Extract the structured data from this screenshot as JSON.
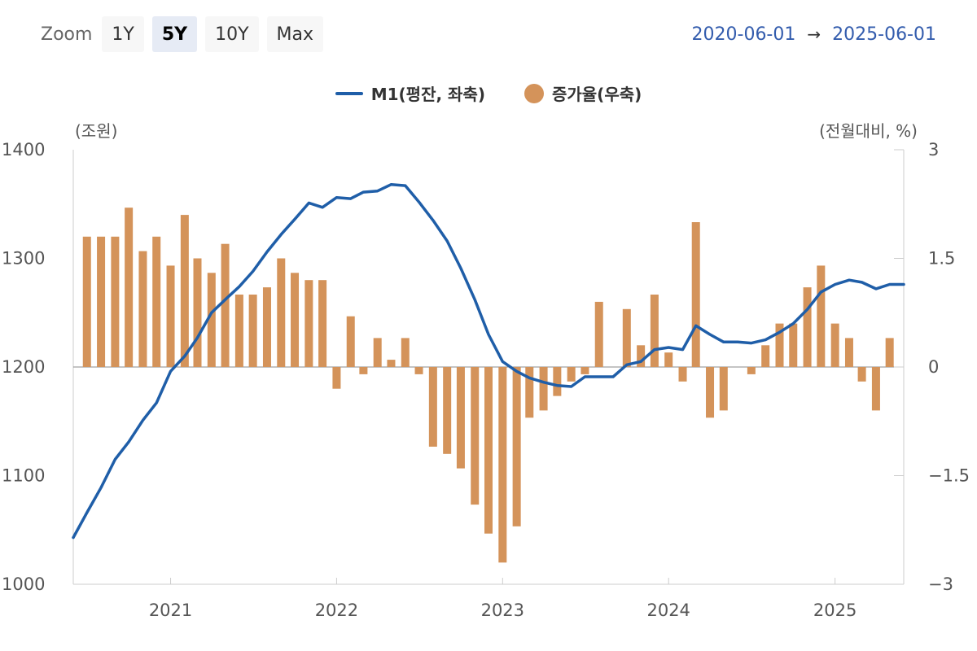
{
  "toolbar": {
    "zoom_label": "Zoom",
    "buttons": [
      {
        "label": "1Y",
        "active": false
      },
      {
        "label": "5Y",
        "active": true
      },
      {
        "label": "10Y",
        "active": false
      },
      {
        "label": "Max",
        "active": false
      }
    ],
    "range_from": "2020-06-01",
    "range_arrow": "→",
    "range_to": "2025-06-01"
  },
  "legend": {
    "line_label": "M1(평잔, 좌축)",
    "bar_label": "증가율(우축)"
  },
  "colors": {
    "line": "#1f5ea8",
    "bar": "#d4935a",
    "axis": "#cccccc",
    "range_text": "#335cad"
  },
  "chart_data": {
    "type": "bar+line",
    "left_axis": {
      "unit_label": "(조원)",
      "min": 1000,
      "max": 1400,
      "ticks": [
        "1400",
        "1300",
        "1200",
        "1100",
        "1000"
      ],
      "tick_values": [
        1400,
        1300,
        1200,
        1100,
        1000
      ]
    },
    "right_axis": {
      "unit_label": "(전월대비, %)",
      "min": -3,
      "max": 3,
      "ticks": [
        "3",
        "1.5",
        "0",
        "−1.5",
        "−3"
      ],
      "tick_values": [
        3,
        1.5,
        0,
        -1.5,
        -3
      ]
    },
    "x_ticks": [
      "2021",
      "2022",
      "2023",
      "2024",
      "2025"
    ],
    "x_tick_dates": [
      "2021-01-01",
      "2022-01-01",
      "2023-01-01",
      "2024-01-01",
      "2025-01-01"
    ],
    "x_range": [
      "2020-06-01",
      "2025-06-01"
    ],
    "legend_position": "top-center",
    "grid": false,
    "series": [
      {
        "name": "M1(평잔, 좌축)",
        "type": "line",
        "axis": "left",
        "points": [
          [
            "2020-06-01",
            1043
          ],
          [
            "2020-07-01",
            1066
          ],
          [
            "2020-08-01",
            1089
          ],
          [
            "2020-09-01",
            1115
          ],
          [
            "2020-10-01",
            1131
          ],
          [
            "2020-11-01",
            1151
          ],
          [
            "2020-12-01",
            1167
          ],
          [
            "2021-01-01",
            1196
          ],
          [
            "2021-02-01",
            1210
          ],
          [
            "2021-03-01",
            1227
          ],
          [
            "2021-04-01",
            1250
          ],
          [
            "2021-05-01",
            1262
          ],
          [
            "2021-06-01",
            1274
          ],
          [
            "2021-07-01",
            1288
          ],
          [
            "2021-08-01",
            1306
          ],
          [
            "2021-09-01",
            1322
          ],
          [
            "2021-10-01",
            1336
          ],
          [
            "2021-11-01",
            1351
          ],
          [
            "2021-12-01",
            1347
          ],
          [
            "2022-01-01",
            1356
          ],
          [
            "2022-02-01",
            1355
          ],
          [
            "2022-03-01",
            1361
          ],
          [
            "2022-04-01",
            1362
          ],
          [
            "2022-05-01",
            1368
          ],
          [
            "2022-06-01",
            1367
          ],
          [
            "2022-07-01",
            1352
          ],
          [
            "2022-08-01",
            1335
          ],
          [
            "2022-09-01",
            1316
          ],
          [
            "2022-10-01",
            1291
          ],
          [
            "2022-11-01",
            1262
          ],
          [
            "2022-12-01",
            1230
          ],
          [
            "2023-01-01",
            1205
          ],
          [
            "2023-02-01",
            1196
          ],
          [
            "2023-03-01",
            1190
          ],
          [
            "2023-04-01",
            1186
          ],
          [
            "2023-05-01",
            1183
          ],
          [
            "2023-06-01",
            1182
          ],
          [
            "2023-07-01",
            1191
          ],
          [
            "2023-08-01",
            1191
          ],
          [
            "2023-09-01",
            1191
          ],
          [
            "2023-10-01",
            1202
          ],
          [
            "2023-11-01",
            1205
          ],
          [
            "2023-12-01",
            1216
          ],
          [
            "2024-01-01",
            1218
          ],
          [
            "2024-02-01",
            1216
          ],
          [
            "2024-03-01",
            1238
          ],
          [
            "2024-04-01",
            1230
          ],
          [
            "2024-05-01",
            1223
          ],
          [
            "2024-06-01",
            1223
          ],
          [
            "2024-07-01",
            1222
          ],
          [
            "2024-08-01",
            1225
          ],
          [
            "2024-09-01",
            1232
          ],
          [
            "2024-10-01",
            1240
          ],
          [
            "2024-11-01",
            1253
          ],
          [
            "2024-12-01",
            1269
          ],
          [
            "2025-01-01",
            1276
          ],
          [
            "2025-02-01",
            1280
          ],
          [
            "2025-03-01",
            1278
          ],
          [
            "2025-04-01",
            1272
          ],
          [
            "2025-05-01",
            1276
          ],
          [
            "2025-06-01",
            1276
          ]
        ]
      },
      {
        "name": "증가율(우축)",
        "type": "bar",
        "axis": "right",
        "points": [
          [
            "2020-07-01",
            1.8
          ],
          [
            "2020-08-01",
            1.8
          ],
          [
            "2020-09-01",
            1.8
          ],
          [
            "2020-10-01",
            2.2
          ],
          [
            "2020-11-01",
            1.6
          ],
          [
            "2020-12-01",
            1.8
          ],
          [
            "2021-01-01",
            1.4
          ],
          [
            "2021-02-01",
            2.1
          ],
          [
            "2021-03-01",
            1.5
          ],
          [
            "2021-04-01",
            1.3
          ],
          [
            "2021-05-01",
            1.7
          ],
          [
            "2021-06-01",
            1.0
          ],
          [
            "2021-07-01",
            1.0
          ],
          [
            "2021-08-01",
            1.1
          ],
          [
            "2021-09-01",
            1.5
          ],
          [
            "2021-10-01",
            1.3
          ],
          [
            "2021-11-01",
            1.2
          ],
          [
            "2021-12-01",
            1.2
          ],
          [
            "2022-01-01",
            -0.3
          ],
          [
            "2022-02-01",
            0.7
          ],
          [
            "2022-03-01",
            -0.1
          ],
          [
            "2022-04-01",
            0.4
          ],
          [
            "2022-05-01",
            0.1
          ],
          [
            "2022-06-01",
            0.4
          ],
          [
            "2022-07-01",
            -0.1
          ],
          [
            "2022-08-01",
            -1.1
          ],
          [
            "2022-09-01",
            -1.2
          ],
          [
            "2022-10-01",
            -1.4
          ],
          [
            "2022-11-01",
            -1.9
          ],
          [
            "2022-12-01",
            -2.3
          ],
          [
            "2023-01-01",
            -2.7
          ],
          [
            "2023-02-01",
            -2.2
          ],
          [
            "2023-03-01",
            -0.7
          ],
          [
            "2023-04-01",
            -0.6
          ],
          [
            "2023-05-01",
            -0.4
          ],
          [
            "2023-06-01",
            -0.2
          ],
          [
            "2023-07-01",
            -0.1
          ],
          [
            "2023-08-01",
            0.9
          ],
          [
            "2023-10-01",
            0.8
          ],
          [
            "2023-11-01",
            0.3
          ],
          [
            "2023-12-01",
            1.0
          ],
          [
            "2024-01-01",
            0.2
          ],
          [
            "2024-02-01",
            -0.2
          ],
          [
            "2024-03-01",
            2.0
          ],
          [
            "2024-04-01",
            -0.7
          ],
          [
            "2024-05-01",
            -0.6
          ],
          [
            "2024-07-01",
            -0.1
          ],
          [
            "2024-08-01",
            0.3
          ],
          [
            "2024-09-01",
            0.6
          ],
          [
            "2024-10-01",
            0.6
          ],
          [
            "2024-11-01",
            1.1
          ],
          [
            "2024-12-01",
            1.4
          ],
          [
            "2025-01-01",
            0.6
          ],
          [
            "2025-02-01",
            0.4
          ],
          [
            "2025-03-01",
            -0.2
          ],
          [
            "2025-04-01",
            -0.6
          ],
          [
            "2025-05-01",
            0.4
          ]
        ]
      }
    ]
  }
}
